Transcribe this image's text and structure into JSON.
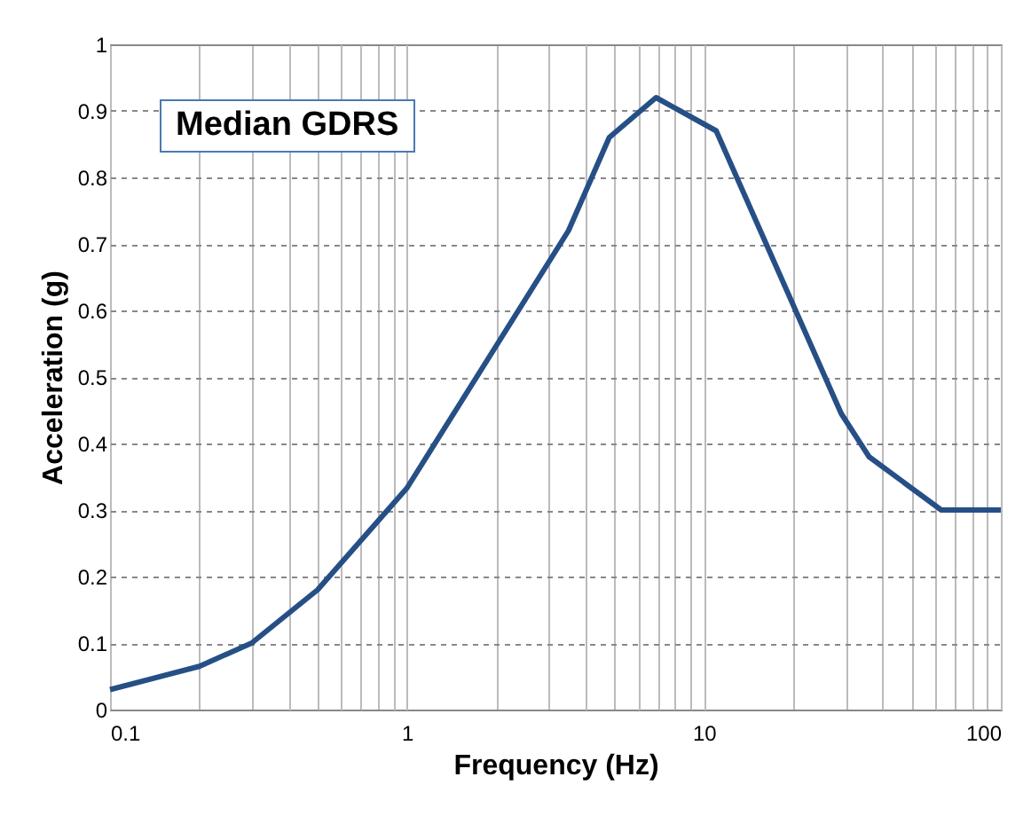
{
  "chart_data": {
    "type": "line",
    "title": "Median GDRS",
    "xlabel": "Frequency (Hz)",
    "ylabel": "Acceleration (g)",
    "log": "x",
    "x": [
      0.1,
      0.2,
      0.3,
      0.5,
      1,
      3.5,
      4.8,
      6.9,
      11,
      29,
      36,
      63,
      100
    ],
    "series": [
      {
        "color": "#264f86",
        "values": [
          0.03,
          0.065,
          0.1,
          0.18,
          0.333,
          0.72,
          0.86,
          0.92,
          0.87,
          0.445,
          0.38,
          0.3,
          0.3
        ]
      }
    ],
    "xlim": [
      0.1,
      100
    ],
    "xticks": [
      0.1,
      {
        "value": 0.2,
        "label": null
      },
      {
        "value": 0.3,
        "label": null
      },
      {
        "value": 0.4,
        "label": null
      },
      {
        "value": 0.5,
        "label": null
      },
      {
        "value": 0.6,
        "label": null
      },
      {
        "value": 0.7,
        "label": null
      },
      {
        "value": 0.8,
        "label": null
      },
      {
        "value": 0.9,
        "label": null
      },
      1,
      {
        "value": 2,
        "label": null
      },
      {
        "value": 3,
        "label": null
      },
      {
        "value": 4,
        "label": null
      },
      {
        "value": 5,
        "label": null
      },
      {
        "value": 6,
        "label": null
      },
      {
        "value": 7,
        "label": null
      },
      {
        "value": 8,
        "label": null
      },
      {
        "value": 9,
        "label": null
      },
      10,
      {
        "value": 20,
        "label": null
      },
      {
        "value": 30,
        "label": null
      },
      {
        "value": 40,
        "label": null
      },
      {
        "value": 50,
        "label": null
      },
      {
        "value": 60,
        "label": null
      },
      {
        "value": 70,
        "label": null
      },
      {
        "value": 80,
        "label": null
      },
      {
        "value": 90,
        "label": null
      },
      100
    ],
    "ylim": [
      0,
      1
    ],
    "yticks": [
      0,
      0.1,
      0.2,
      0.3,
      0.4,
      0.5,
      0.6,
      0.7,
      0.8,
      0.9,
      1
    ],
    "grid": true,
    "legend": false,
    "line_style": "solid"
  }
}
